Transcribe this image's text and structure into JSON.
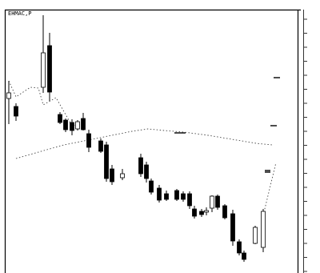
{
  "chart_data": {
    "type": "candlestick",
    "title": "",
    "header": "EHMAC,P",
    "xlabel": "",
    "ylabel": "",
    "ylim": [
      0,
      340
    ],
    "grid": false,
    "colors": {
      "up": "#ffffff",
      "down": "#000000",
      "wick": "#000000",
      "frame": "#000000",
      "dots": "#444444"
    },
    "candles": [
      {
        "x": 11,
        "o": 218,
        "h": 240,
        "l": 186,
        "c": 225
      },
      {
        "x": 20,
        "o": 208,
        "h": 212,
        "l": 190,
        "c": 196
      },
      {
        "x": 54,
        "o": 232,
        "h": 322,
        "l": 225,
        "c": 275
      },
      {
        "x": 62,
        "o": 284,
        "h": 300,
        "l": 215,
        "c": 226
      },
      {
        "x": 75,
        "o": 198,
        "h": 201,
        "l": 186,
        "c": 188
      },
      {
        "x": 82,
        "o": 191,
        "h": 193,
        "l": 176,
        "c": 179
      },
      {
        "x": 90,
        "o": 188,
        "h": 192,
        "l": 172,
        "c": 178
      },
      {
        "x": 97,
        "o": 180,
        "h": 191,
        "l": 178,
        "c": 189
      },
      {
        "x": 104,
        "o": 193,
        "h": 200,
        "l": 178,
        "c": 179
      },
      {
        "x": 111,
        "o": 174,
        "h": 179,
        "l": 151,
        "c": 157
      },
      {
        "x": 126,
        "o": 165,
        "h": 168,
        "l": 150,
        "c": 152
      },
      {
        "x": 133,
        "o": 160,
        "h": 164,
        "l": 114,
        "c": 118
      },
      {
        "x": 140,
        "o": 130,
        "h": 135,
        "l": 110,
        "c": 114
      },
      {
        "x": 153,
        "o": 119,
        "h": 130,
        "l": 116,
        "c": 124
      },
      {
        "x": 176,
        "o": 144,
        "h": 149,
        "l": 120,
        "c": 124
      },
      {
        "x": 183,
        "o": 135,
        "h": 139,
        "l": 113,
        "c": 118
      },
      {
        "x": 189,
        "o": 115,
        "h": 118,
        "l": 98,
        "c": 101
      },
      {
        "x": 199,
        "o": 106,
        "h": 110,
        "l": 88,
        "c": 91
      },
      {
        "x": 208,
        "o": 99,
        "h": 103,
        "l": 90,
        "c": 92
      },
      {
        "x": 221,
        "o": 103,
        "h": 105,
        "l": 90,
        "c": 92
      },
      {
        "x": 229,
        "o": 99,
        "h": 102,
        "l": 89,
        "c": 92
      },
      {
        "x": 237,
        "o": 99,
        "h": 102,
        "l": 80,
        "c": 84
      },
      {
        "x": 243,
        "o": 80,
        "h": 84,
        "l": 68,
        "c": 71
      },
      {
        "x": 252,
        "o": 77,
        "h": 80,
        "l": 70,
        "c": 73
      },
      {
        "x": 258,
        "o": 76,
        "h": 82,
        "l": 72,
        "c": 78
      },
      {
        "x": 265,
        "o": 81,
        "h": 97,
        "l": 76,
        "c": 96
      },
      {
        "x": 272,
        "o": 96,
        "h": 98,
        "l": 79,
        "c": 82
      },
      {
        "x": 281,
        "o": 84,
        "h": 86,
        "l": 67,
        "c": 69
      },
      {
        "x": 291,
        "o": 74,
        "h": 79,
        "l": 34,
        "c": 40
      },
      {
        "x": 299,
        "o": 39,
        "h": 42,
        "l": 22,
        "c": 25
      },
      {
        "x": 305,
        "o": 25,
        "h": 28,
        "l": 14,
        "c": 17
      },
      {
        "x": 319,
        "o": 37,
        "h": 59,
        "l": 36,
        "c": 57
      },
      {
        "x": 329,
        "o": 32,
        "h": 80,
        "l": 26,
        "c": 77
      }
    ],
    "dotted_lines": [
      {
        "name": "line-a",
        "points": [
          [
            11,
            240
          ],
          [
            20,
            220
          ],
          [
            38,
            232
          ],
          [
            48,
            231
          ],
          [
            54,
            210
          ],
          [
            70,
            219
          ],
          [
            90,
            184
          ],
          [
            100,
            186
          ]
        ]
      },
      {
        "name": "line-b",
        "points": [
          [
            20,
            143
          ],
          [
            55,
            153
          ],
          [
            80,
            160
          ],
          [
            110,
            166
          ],
          [
            165,
            177
          ],
          [
            185,
            180
          ],
          [
            205,
            178
          ],
          [
            230,
            176
          ],
          [
            260,
            172
          ],
          [
            290,
            167
          ],
          [
            320,
            162
          ],
          [
            340,
            160
          ]
        ]
      },
      {
        "name": "line-c",
        "points": [
          [
            329,
            72
          ],
          [
            345,
            138
          ]
        ]
      }
    ],
    "level_marks": [
      {
        "y": 244,
        "x1": 342,
        "x2": 350
      },
      {
        "y": 184,
        "x1": 338,
        "x2": 346
      },
      {
        "y": 175,
        "x1": 218,
        "x2": 232
      },
      {
        "y": 126,
        "x1": 331,
        "x2": 338
      },
      {
        "y": 128,
        "x1": 331,
        "x2": 338
      }
    ]
  }
}
